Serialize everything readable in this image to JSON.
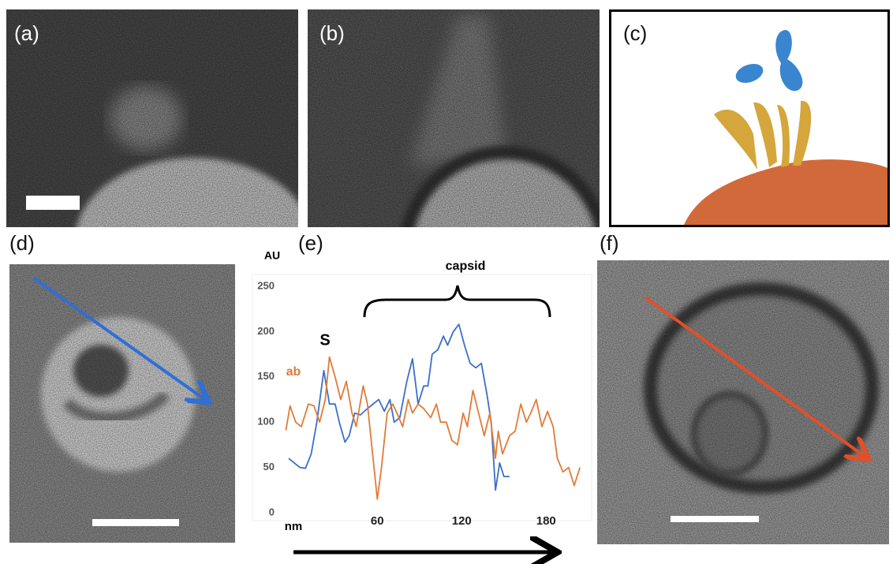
{
  "panels": {
    "a": "(a)",
    "b": "(b)",
    "c": "(c)",
    "d": "(d)",
    "e": "(e)",
    "f": "(f)"
  },
  "chart_data": {
    "type": "line",
    "ylabel": "AU",
    "xlabel": "nm",
    "annotation": "capsid",
    "xlim": [
      -8,
      209
    ],
    "ylim": [
      0,
      250
    ],
    "xticks": [
      60,
      120,
      180
    ],
    "yticks": [
      0,
      50,
      100,
      150,
      200,
      250
    ],
    "grid": false,
    "series": [
      {
        "name": "S",
        "color": "#3b6fc9",
        "x": [
          -3,
          1,
          5,
          9,
          13,
          17,
          22,
          26,
          30,
          33,
          37,
          40,
          44,
          48,
          53,
          57,
          61,
          65,
          69,
          72,
          76,
          81,
          85,
          89,
          93,
          96,
          99,
          103,
          107,
          110,
          114,
          118,
          122,
          126,
          130,
          134,
          138,
          141,
          144,
          147,
          150,
          154
        ],
        "values": [
          60,
          55,
          50,
          49,
          65,
          100,
          157,
          120,
          120,
          100,
          78,
          85,
          110,
          108,
          115,
          120,
          125,
          112,
          125,
          100,
          105,
          145,
          170,
          120,
          140,
          140,
          175,
          180,
          195,
          185,
          200,
          208,
          185,
          165,
          160,
          165,
          130,
          100,
          25,
          55,
          40,
          40
        ]
      },
      {
        "name": "ab",
        "color": "#e07b39",
        "x": [
          -5,
          -2,
          2,
          6,
          11,
          15,
          19,
          23,
          26,
          30,
          34,
          38,
          42,
          45,
          50,
          53,
          57,
          60,
          63,
          67,
          71,
          74,
          78,
          82,
          85,
          89,
          93,
          98,
          102,
          105,
          109,
          113,
          117,
          121,
          124,
          128,
          132,
          136,
          140,
          144,
          146,
          149,
          154,
          158,
          162,
          166,
          169,
          173,
          177,
          181,
          185,
          188,
          192,
          196,
          200,
          204
        ],
        "values": [
          91,
          118,
          100,
          95,
          120,
          118,
          100,
          125,
          172,
          150,
          125,
          145,
          110,
          95,
          140,
          120,
          60,
          15,
          50,
          110,
          120,
          110,
          95,
          125,
          110,
          120,
          115,
          105,
          120,
          100,
          100,
          80,
          75,
          110,
          95,
          135,
          110,
          85,
          110,
          60,
          90,
          65,
          85,
          90,
          120,
          100,
          110,
          125,
          95,
          112,
          95,
          60,
          45,
          50,
          30,
          50
        ]
      }
    ]
  }
}
